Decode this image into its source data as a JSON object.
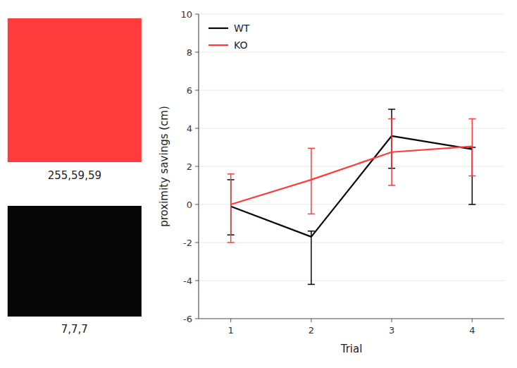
{
  "chart_data": {
    "type": "line",
    "xlabel": "Trial",
    "ylabel": "proximity savings (cm)",
    "x": [
      1,
      2,
      3,
      4
    ],
    "series": [
      {
        "name": "WT",
        "color": "#070707",
        "values": [
          -0.1,
          -1.7,
          3.6,
          2.9
        ],
        "error_lo": [
          1.5,
          2.5,
          1.7,
          2.9
        ],
        "error_hi": [
          1.4,
          0.3,
          1.4,
          0.1
        ]
      },
      {
        "name": "KO",
        "color": "#ff3b3b",
        "values": [
          0.0,
          1.3,
          2.75,
          3.05
        ],
        "error_lo": [
          2.0,
          1.8,
          1.75,
          1.55
        ],
        "error_hi": [
          1.6,
          1.65,
          1.75,
          1.45
        ]
      }
    ],
    "xlim": [
      0.6,
      4.4
    ],
    "xticks": [
      1,
      2,
      3,
      4
    ],
    "ylim": [
      -6,
      10
    ],
    "yticks": [
      -6,
      -4,
      -2,
      0,
      2,
      4,
      6,
      8,
      10
    ],
    "legend": "upper-left",
    "annotations": [
      {
        "text": "255,59,59",
        "color": "#ff3b3b"
      },
      {
        "text": "7,7,7",
        "color": "#070707"
      }
    ]
  }
}
